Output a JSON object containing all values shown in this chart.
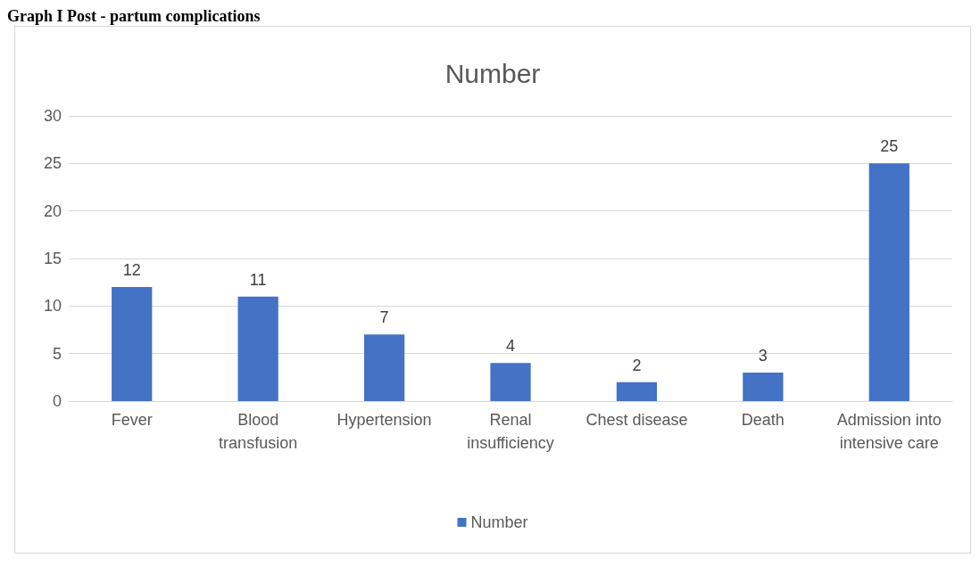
{
  "chart_data": {
    "type": "bar",
    "title": "Number",
    "annotations": [
      "Graph I Post - partum complications"
    ],
    "categories": [
      "Fever",
      "Blood transfusion",
      "Hypertension",
      "Renal insufficiency",
      "Chest disease",
      "Death",
      "Admission into intensive care"
    ],
    "series": [
      {
        "name": "Number",
        "color": "#4472c4",
        "values": [
          12,
          11,
          7,
          4,
          2,
          3,
          25
        ]
      }
    ],
    "ylim": [
      0,
      30
    ],
    "yticks": [
      0,
      5,
      10,
      15,
      20,
      25,
      30
    ],
    "grid": "y",
    "legend": "bottom",
    "data_labels": true
  }
}
